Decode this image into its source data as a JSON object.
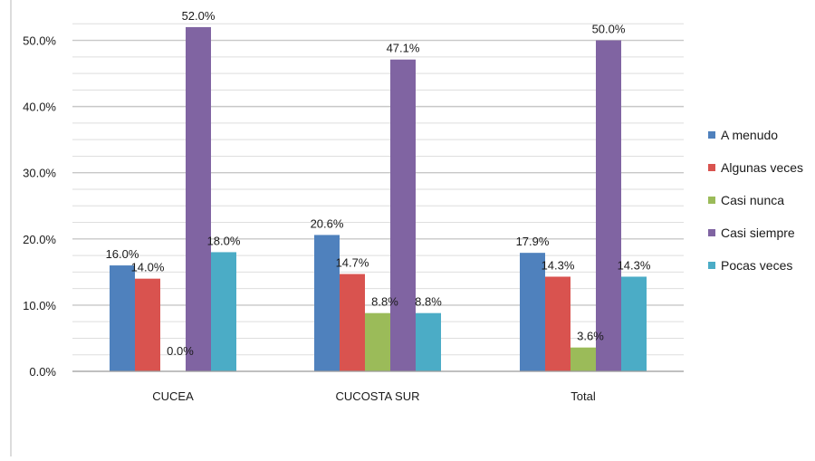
{
  "chart_data": {
    "type": "bar",
    "categories": [
      "CUCEA",
      "CUCOSTA SUR",
      "Total"
    ],
    "series": [
      {
        "name": "A menudo",
        "values": [
          16.0,
          20.6,
          17.9
        ],
        "labels": [
          "16.0%",
          "20.6%",
          "17.9%"
        ],
        "color": "#4f81bd"
      },
      {
        "name": "Algunas veces",
        "values": [
          14.0,
          14.7,
          14.3
        ],
        "labels": [
          "14.0%",
          "14.7%",
          "14.3%"
        ],
        "color": "#d9534f"
      },
      {
        "name": "Casi nunca",
        "values": [
          0.0,
          8.8,
          3.6
        ],
        "labels": [
          "0.0%",
          "8.8%",
          "3.6%"
        ],
        "color": "#9bbb59"
      },
      {
        "name": "Casi siempre",
        "values": [
          52.0,
          47.1,
          50.0
        ],
        "labels": [
          "52.0%",
          "47.1%",
          "50.0%"
        ],
        "color": "#8064a2"
      },
      {
        "name": "Pocas veces",
        "values": [
          18.0,
          8.8,
          14.3
        ],
        "labels": [
          "18.0%",
          "8.8%",
          "14.3%"
        ],
        "color": "#4bacc6"
      }
    ],
    "y_ticks": [
      "0.0%",
      "10.0%",
      "20.0%",
      "30.0%",
      "40.0%",
      "50.0%"
    ],
    "ylim": [
      0,
      55
    ],
    "grid": true,
    "legend_position": "right"
  }
}
